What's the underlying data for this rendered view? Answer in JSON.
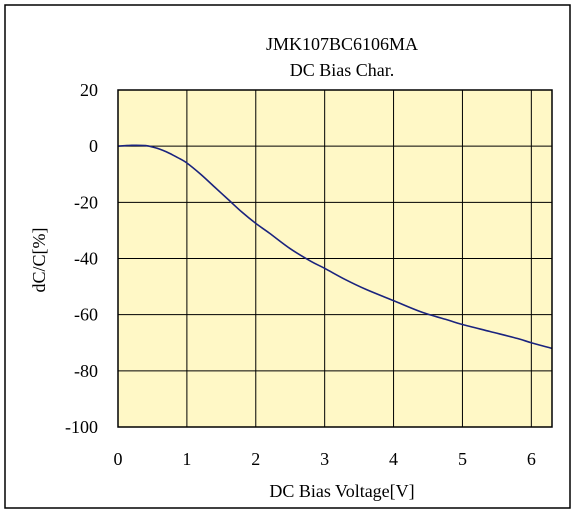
{
  "chart_data": {
    "type": "line",
    "title": "JMK107BC6106MA",
    "subtitle": "DC Bias Char.",
    "xlabel": "DC Bias Voltage[V]",
    "ylabel": "dC/C[%]",
    "xlim": [
      0,
      6.3
    ],
    "ylim": [
      -100,
      20
    ],
    "x_ticks": [
      0,
      1,
      2,
      3,
      4,
      5,
      6
    ],
    "y_ticks": [
      20,
      0,
      -20,
      -40,
      -60,
      -80,
      -100
    ],
    "grid": true,
    "colors": {
      "plot_background": "#FFF8C6",
      "line": "#1A237E",
      "grid": "#000000"
    },
    "series": [
      {
        "x": [
          0,
          0.2,
          0.4,
          0.5,
          0.6,
          0.7,
          0.8,
          0.9,
          1.0,
          1.2,
          1.4,
          1.6,
          1.8,
          2.0,
          2.2,
          2.5,
          2.8,
          3.0,
          3.3,
          3.6,
          4.0,
          4.4,
          4.8,
          5.0,
          5.4,
          5.8,
          6.0,
          6.3
        ],
        "y": [
          0,
          0.3,
          0.2,
          -0.3,
          -1,
          -2,
          -3.2,
          -4.5,
          -6,
          -10,
          -14.5,
          -19,
          -23.5,
          -27.5,
          -31,
          -36.5,
          -41,
          -43.5,
          -47.5,
          -51,
          -55,
          -59,
          -62,
          -63.5,
          -66,
          -68.5,
          -70,
          -72
        ]
      }
    ]
  }
}
